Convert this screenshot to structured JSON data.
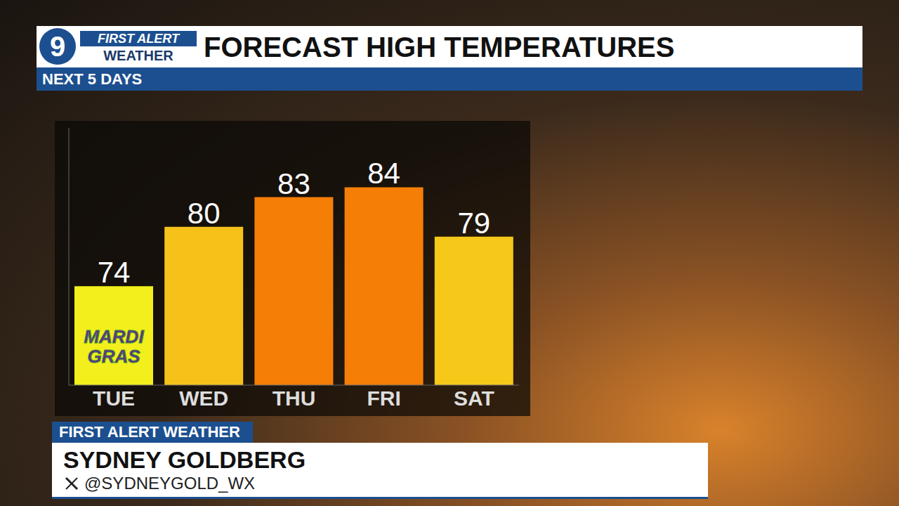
{
  "chart_data": {
    "type": "bar",
    "title": "FORECAST HIGH TEMPERATURES",
    "subtitle": "NEXT 5 DAYS",
    "categories": [
      "TUE",
      "WED",
      "THU",
      "FRI",
      "SAT"
    ],
    "values": [
      74,
      80,
      83,
      84,
      79
    ],
    "colors": [
      "#f2ef1c",
      "#f6c21a",
      "#f57f06",
      "#f57f06",
      "#f6c81a"
    ],
    "ylim": [
      64,
      90
    ],
    "data_labels": true,
    "tick_labels": "x",
    "grid": false,
    "annotations": [
      {
        "category": "TUE",
        "text": "MARDI GRAS"
      }
    ]
  },
  "header": {
    "channel": "9",
    "brand_top": "FIRST ALERT",
    "brand_bottom": "WEATHER"
  },
  "lower_third": {
    "tag": "FIRST ALERT WEATHER",
    "name": "SYDNEY GOLDBERG",
    "handle": "@SYDNEYGOLD_WX"
  }
}
